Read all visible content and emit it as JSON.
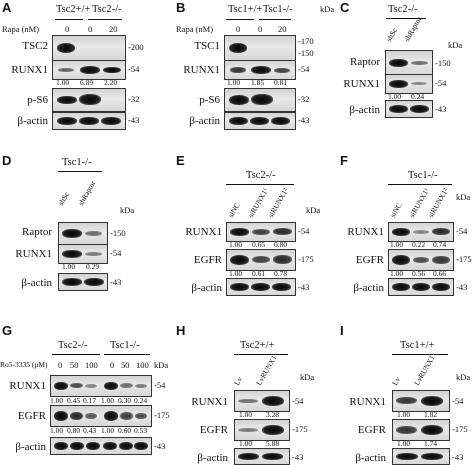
{
  "panelA": {
    "letter": "A",
    "geno1": "Tsc2+/+",
    "geno2": "Tsc2-/-",
    "rapa_label": "Rapa (nM)",
    "rapa": [
      "0",
      "0",
      "20"
    ],
    "rows": [
      "TSC2",
      "RUNX1",
      "p-S6",
      "β-actin"
    ],
    "mw": [
      "-200",
      "-54",
      "-32",
      "-43"
    ],
    "kda": "kDa",
    "quant": [
      "1.00",
      "6.89",
      "2.20"
    ]
  },
  "panelB": {
    "letter": "B",
    "geno1": "Tsc1+/+",
    "geno2": "Tsc1-/-",
    "rapa_label": "Rapa (nM)",
    "rapa": [
      "0",
      "0",
      "20"
    ],
    "rows": [
      "TSC1",
      "RUNX1",
      "p-S6",
      "β-actin"
    ],
    "mw": [
      "-170",
      "-150",
      "-54",
      "-32",
      "-43"
    ],
    "kda": "kDa",
    "quant": [
      "1.00",
      "1.85",
      "0.81"
    ]
  },
  "panelC": {
    "letter": "C",
    "geno": "Tsc2-/-",
    "lanes": [
      "shSc",
      "shRaptor"
    ],
    "rows": [
      "Raptor",
      "RUNX1",
      "β-actin"
    ],
    "mw": [
      "-150",
      "-54",
      "-43"
    ],
    "kda": "kDa",
    "quant": [
      "1.00",
      "0.24"
    ]
  },
  "panelD": {
    "letter": "D",
    "geno": "Tsc1-/-",
    "lanes": [
      "shSc",
      "shRaptor"
    ],
    "rows": [
      "Raptor",
      "RUNX1",
      "β-actin"
    ],
    "mw": [
      "-150",
      "-54",
      "-43"
    ],
    "kda": "kDa",
    "quant": [
      "1.00",
      "0.29"
    ]
  },
  "panelE": {
    "letter": "E",
    "geno": "Tsc2-/-",
    "lanes": [
      "siNC",
      "siRUNX1¹",
      "siRUNX1²"
    ],
    "rows": [
      "RUNX1",
      "EGFR",
      "β-actin"
    ],
    "mw": [
      "-54",
      "-175",
      "-43"
    ],
    "kda": "kDa",
    "quant1": [
      "1.00",
      "0.65",
      "0.80"
    ],
    "quant2": [
      "1.00",
      "0.61",
      "0.78"
    ]
  },
  "panelF": {
    "letter": "F",
    "geno": "Tsc1-/-",
    "lanes": [
      "siNC",
      "siRUNX1¹",
      "siRUNX1²"
    ],
    "rows": [
      "RUNX1",
      "EGFR",
      "β-actin"
    ],
    "mw": [
      "-54",
      "-175",
      "-43"
    ],
    "kda": "kDa",
    "quant1": [
      "1.00",
      "0.22",
      "0.74"
    ],
    "quant2": [
      "1.00",
      "0.56",
      "0.66"
    ]
  },
  "panelG": {
    "letter": "G",
    "geno1": "Tsc2-/-",
    "geno2": "Tsc1-/-",
    "ro_label": "Ro5-3335 (μM)",
    "doses": [
      "0",
      "50",
      "100",
      "0",
      "50",
      "100"
    ],
    "rows": [
      "RUNX1",
      "EGFR",
      "β-actin"
    ],
    "mw": [
      "-54",
      "-175",
      "-43"
    ],
    "kda": "kDa",
    "quant1": [
      "1.00",
      "0.45",
      "0.17",
      "1.00",
      "0.30",
      "0.24"
    ],
    "quant2": [
      "1.00",
      "0.80",
      "0.43",
      "1.00",
      "0.60",
      "0.53"
    ]
  },
  "panelH": {
    "letter": "H",
    "geno": "Tsc2+/+",
    "lanes": [
      "Lv",
      "LvRUNX1"
    ],
    "rows": [
      "RUNX1",
      "EGFR",
      "β-actin"
    ],
    "mw": [
      "-54",
      "-175",
      "-43"
    ],
    "kda": "kDa",
    "quant1": [
      "1.00",
      "3.28"
    ],
    "quant2": [
      "1.00",
      "5.88"
    ]
  },
  "panelI": {
    "letter": "I",
    "geno": "Tsc1+/+",
    "lanes": [
      "Lv",
      "LvRUNX1"
    ],
    "rows": [
      "RUNX1",
      "EGFR",
      "β-actin"
    ],
    "mw": [
      "-54",
      "-175",
      "-43"
    ],
    "kda": "kDa",
    "quant1": [
      "1.00",
      "1.82"
    ],
    "quant2": [
      "1.00",
      "1.74"
    ]
  }
}
